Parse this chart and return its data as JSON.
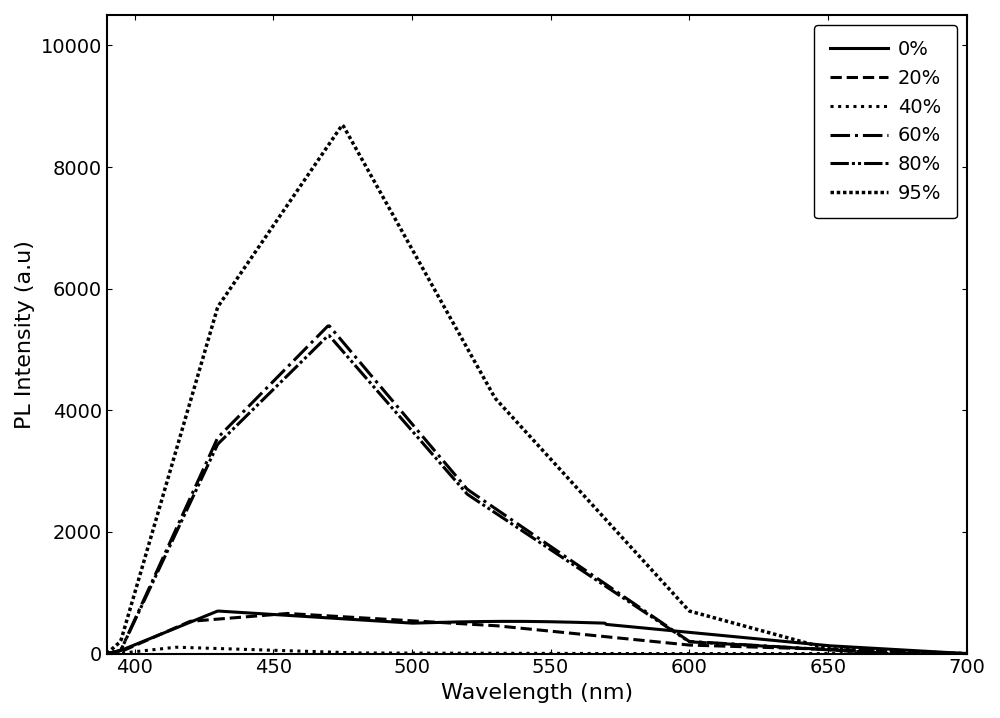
{
  "xlabel": "Wavelength (nm)",
  "ylabel": "PL Intensity (a.u)",
  "xlim": [
    390,
    700
  ],
  "ylim": [
    0,
    10500
  ],
  "yticks": [
    0,
    2000,
    4000,
    6000,
    8000,
    10000
  ],
  "xticks": [
    400,
    450,
    500,
    550,
    600,
    650,
    700
  ],
  "line_color": "#000000",
  "background_color": "#ffffff",
  "legend_labels": [
    "0%",
    "20%",
    "40%",
    "60%",
    "80%",
    "95%"
  ],
  "line_widths": [
    2.2,
    2.2,
    2.2,
    2.2,
    2.2,
    2.5
  ],
  "label_fontsize": 16,
  "tick_fontsize": 14,
  "legend_fontsize": 14
}
